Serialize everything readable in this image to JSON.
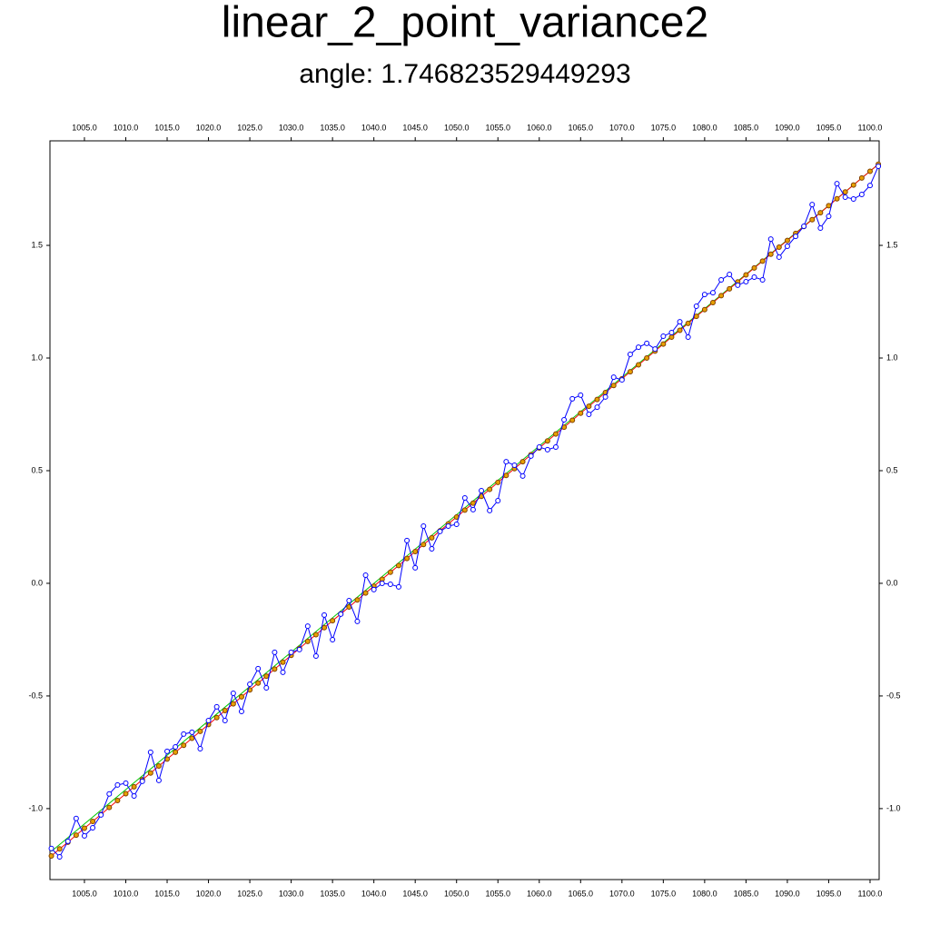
{
  "chart_data": {
    "type": "line",
    "title": "linear_2_point_variance2",
    "subtitle": "angle: 1.746823529449293",
    "x": [
      1001,
      1002,
      1003,
      1004,
      1005,
      1006,
      1007,
      1008,
      1009,
      1010,
      1011,
      1012,
      1013,
      1014,
      1015,
      1016,
      1017,
      1018,
      1019,
      1020,
      1021,
      1022,
      1023,
      1024,
      1025,
      1026,
      1027,
      1028,
      1029,
      1030,
      1031,
      1032,
      1033,
      1034,
      1035,
      1036,
      1037,
      1038,
      1039,
      1040,
      1041,
      1042,
      1043,
      1044,
      1045,
      1046,
      1047,
      1048,
      1049,
      1050,
      1051,
      1052,
      1053,
      1054,
      1055,
      1056,
      1057,
      1058,
      1059,
      1060,
      1061,
      1062,
      1063,
      1064,
      1065,
      1066,
      1067,
      1068,
      1069,
      1070,
      1071,
      1072,
      1073,
      1074,
      1075,
      1076,
      1077,
      1078,
      1079,
      1080,
      1081,
      1082,
      1083,
      1084,
      1085,
      1086,
      1087,
      1088,
      1089,
      1090,
      1091,
      1092,
      1093,
      1094,
      1095,
      1096,
      1097,
      1098,
      1099,
      1100,
      1101
    ],
    "series": [
      {
        "color": "#00c800",
        "x": [
          1001,
          1101
        ],
        "values": [
          -1.19,
          1.86
        ]
      },
      {
        "color": "#ff0000",
        "marker": "circle",
        "marker_fill": "#e8a000",
        "marker_stroke": "#804000",
        "values": [
          -1.21,
          -1.179,
          -1.149,
          -1.118,
          -1.087,
          -1.057,
          -1.026,
          -0.995,
          -0.964,
          -0.934,
          -0.903,
          -0.872,
          -0.842,
          -0.811,
          -0.78,
          -0.75,
          -0.719,
          -0.688,
          -0.657,
          -0.627,
          -0.596,
          -0.565,
          -0.535,
          -0.504,
          -0.473,
          -0.443,
          -0.412,
          -0.381,
          -0.35,
          -0.32,
          -0.289,
          -0.258,
          -0.228,
          -0.197,
          -0.166,
          -0.136,
          -0.105,
          -0.074,
          -0.043,
          -0.013,
          0.018,
          0.049,
          0.079,
          0.11,
          0.141,
          0.172,
          0.202,
          0.233,
          0.264,
          0.294,
          0.325,
          0.356,
          0.386,
          0.417,
          0.448,
          0.479,
          0.509,
          0.54,
          0.571,
          0.601,
          0.632,
          0.663,
          0.693,
          0.724,
          0.755,
          0.786,
          0.816,
          0.847,
          0.878,
          0.908,
          0.939,
          0.97,
          1.0,
          1.031,
          1.062,
          1.093,
          1.123,
          1.154,
          1.185,
          1.215,
          1.246,
          1.277,
          1.307,
          1.338,
          1.369,
          1.4,
          1.43,
          1.461,
          1.492,
          1.522,
          1.553,
          1.584,
          1.614,
          1.645,
          1.676,
          1.707,
          1.737,
          1.768,
          1.799,
          1.829,
          1.86
        ]
      },
      {
        "color": "#0000ff",
        "marker": "circle",
        "marker_fill": "#ffffff",
        "marker_stroke": "#0000ff",
        "values": [
          -1.177,
          -1.214,
          -1.145,
          -1.044,
          -1.121,
          -1.085,
          -1.028,
          -0.935,
          -0.895,
          -0.887,
          -0.944,
          -0.879,
          -0.75,
          -0.875,
          -0.746,
          -0.726,
          -0.669,
          -0.661,
          -0.734,
          -0.609,
          -0.548,
          -0.609,
          -0.488,
          -0.569,
          -0.448,
          -0.379,
          -0.464,
          -0.306,
          -0.395,
          -0.306,
          -0.294,
          -0.19,
          -0.323,
          -0.141,
          -0.25,
          -0.137,
          -0.077,
          -0.169,
          0.036,
          -0.028,
          0.0,
          -0.004,
          -0.016,
          0.19,
          0.069,
          0.254,
          0.153,
          0.23,
          0.254,
          0.262,
          0.379,
          0.327,
          0.411,
          0.323,
          0.367,
          0.54,
          0.524,
          0.476,
          0.565,
          0.605,
          0.593,
          0.605,
          0.726,
          0.819,
          0.835,
          0.75,
          0.782,
          0.827,
          0.915,
          0.903,
          1.016,
          1.048,
          1.065,
          1.04,
          1.097,
          1.113,
          1.161,
          1.093,
          1.23,
          1.282,
          1.29,
          1.347,
          1.371,
          1.323,
          1.339,
          1.359,
          1.347,
          1.528,
          1.448,
          1.496,
          1.54,
          1.585,
          1.681,
          1.577,
          1.629,
          1.774,
          1.714,
          1.706,
          1.726,
          1.766,
          1.851
        ]
      }
    ],
    "xlim": [
      1000.83,
      1101.1
    ],
    "ylim": [
      -1.315,
      1.964
    ],
    "xticks": [
      {
        "value": 1005,
        "label": "1005.0"
      },
      {
        "value": 1010,
        "label": "1010.0"
      },
      {
        "value": 1015,
        "label": "1015.0"
      },
      {
        "value": 1020,
        "label": "1020.0"
      },
      {
        "value": 1025,
        "label": "1025.0"
      },
      {
        "value": 1030,
        "label": "1030.0"
      },
      {
        "value": 1035,
        "label": "1035.0"
      },
      {
        "value": 1040,
        "label": "1040.0"
      },
      {
        "value": 1045,
        "label": "1045.0"
      },
      {
        "value": 1050,
        "label": "1050.0"
      },
      {
        "value": 1055,
        "label": "1055.0"
      },
      {
        "value": 1060,
        "label": "1060.0"
      },
      {
        "value": 1065,
        "label": "1065.0"
      },
      {
        "value": 1070,
        "label": "1070.0"
      },
      {
        "value": 1075,
        "label": "1075.0"
      },
      {
        "value": 1080,
        "label": "1080.0"
      },
      {
        "value": 1085,
        "label": "1085.0"
      },
      {
        "value": 1090,
        "label": "1090.0"
      },
      {
        "value": 1095,
        "label": "1095.0"
      },
      {
        "value": 1100,
        "label": "1100.0"
      }
    ],
    "yticks": [
      {
        "value": -1,
        "label": "-1.0"
      },
      -0.5,
      {
        "value": 0,
        "label": "0.0"
      },
      0.5,
      {
        "value": 1,
        "label": "1.0"
      },
      1.5
    ],
    "grid": false
  }
}
